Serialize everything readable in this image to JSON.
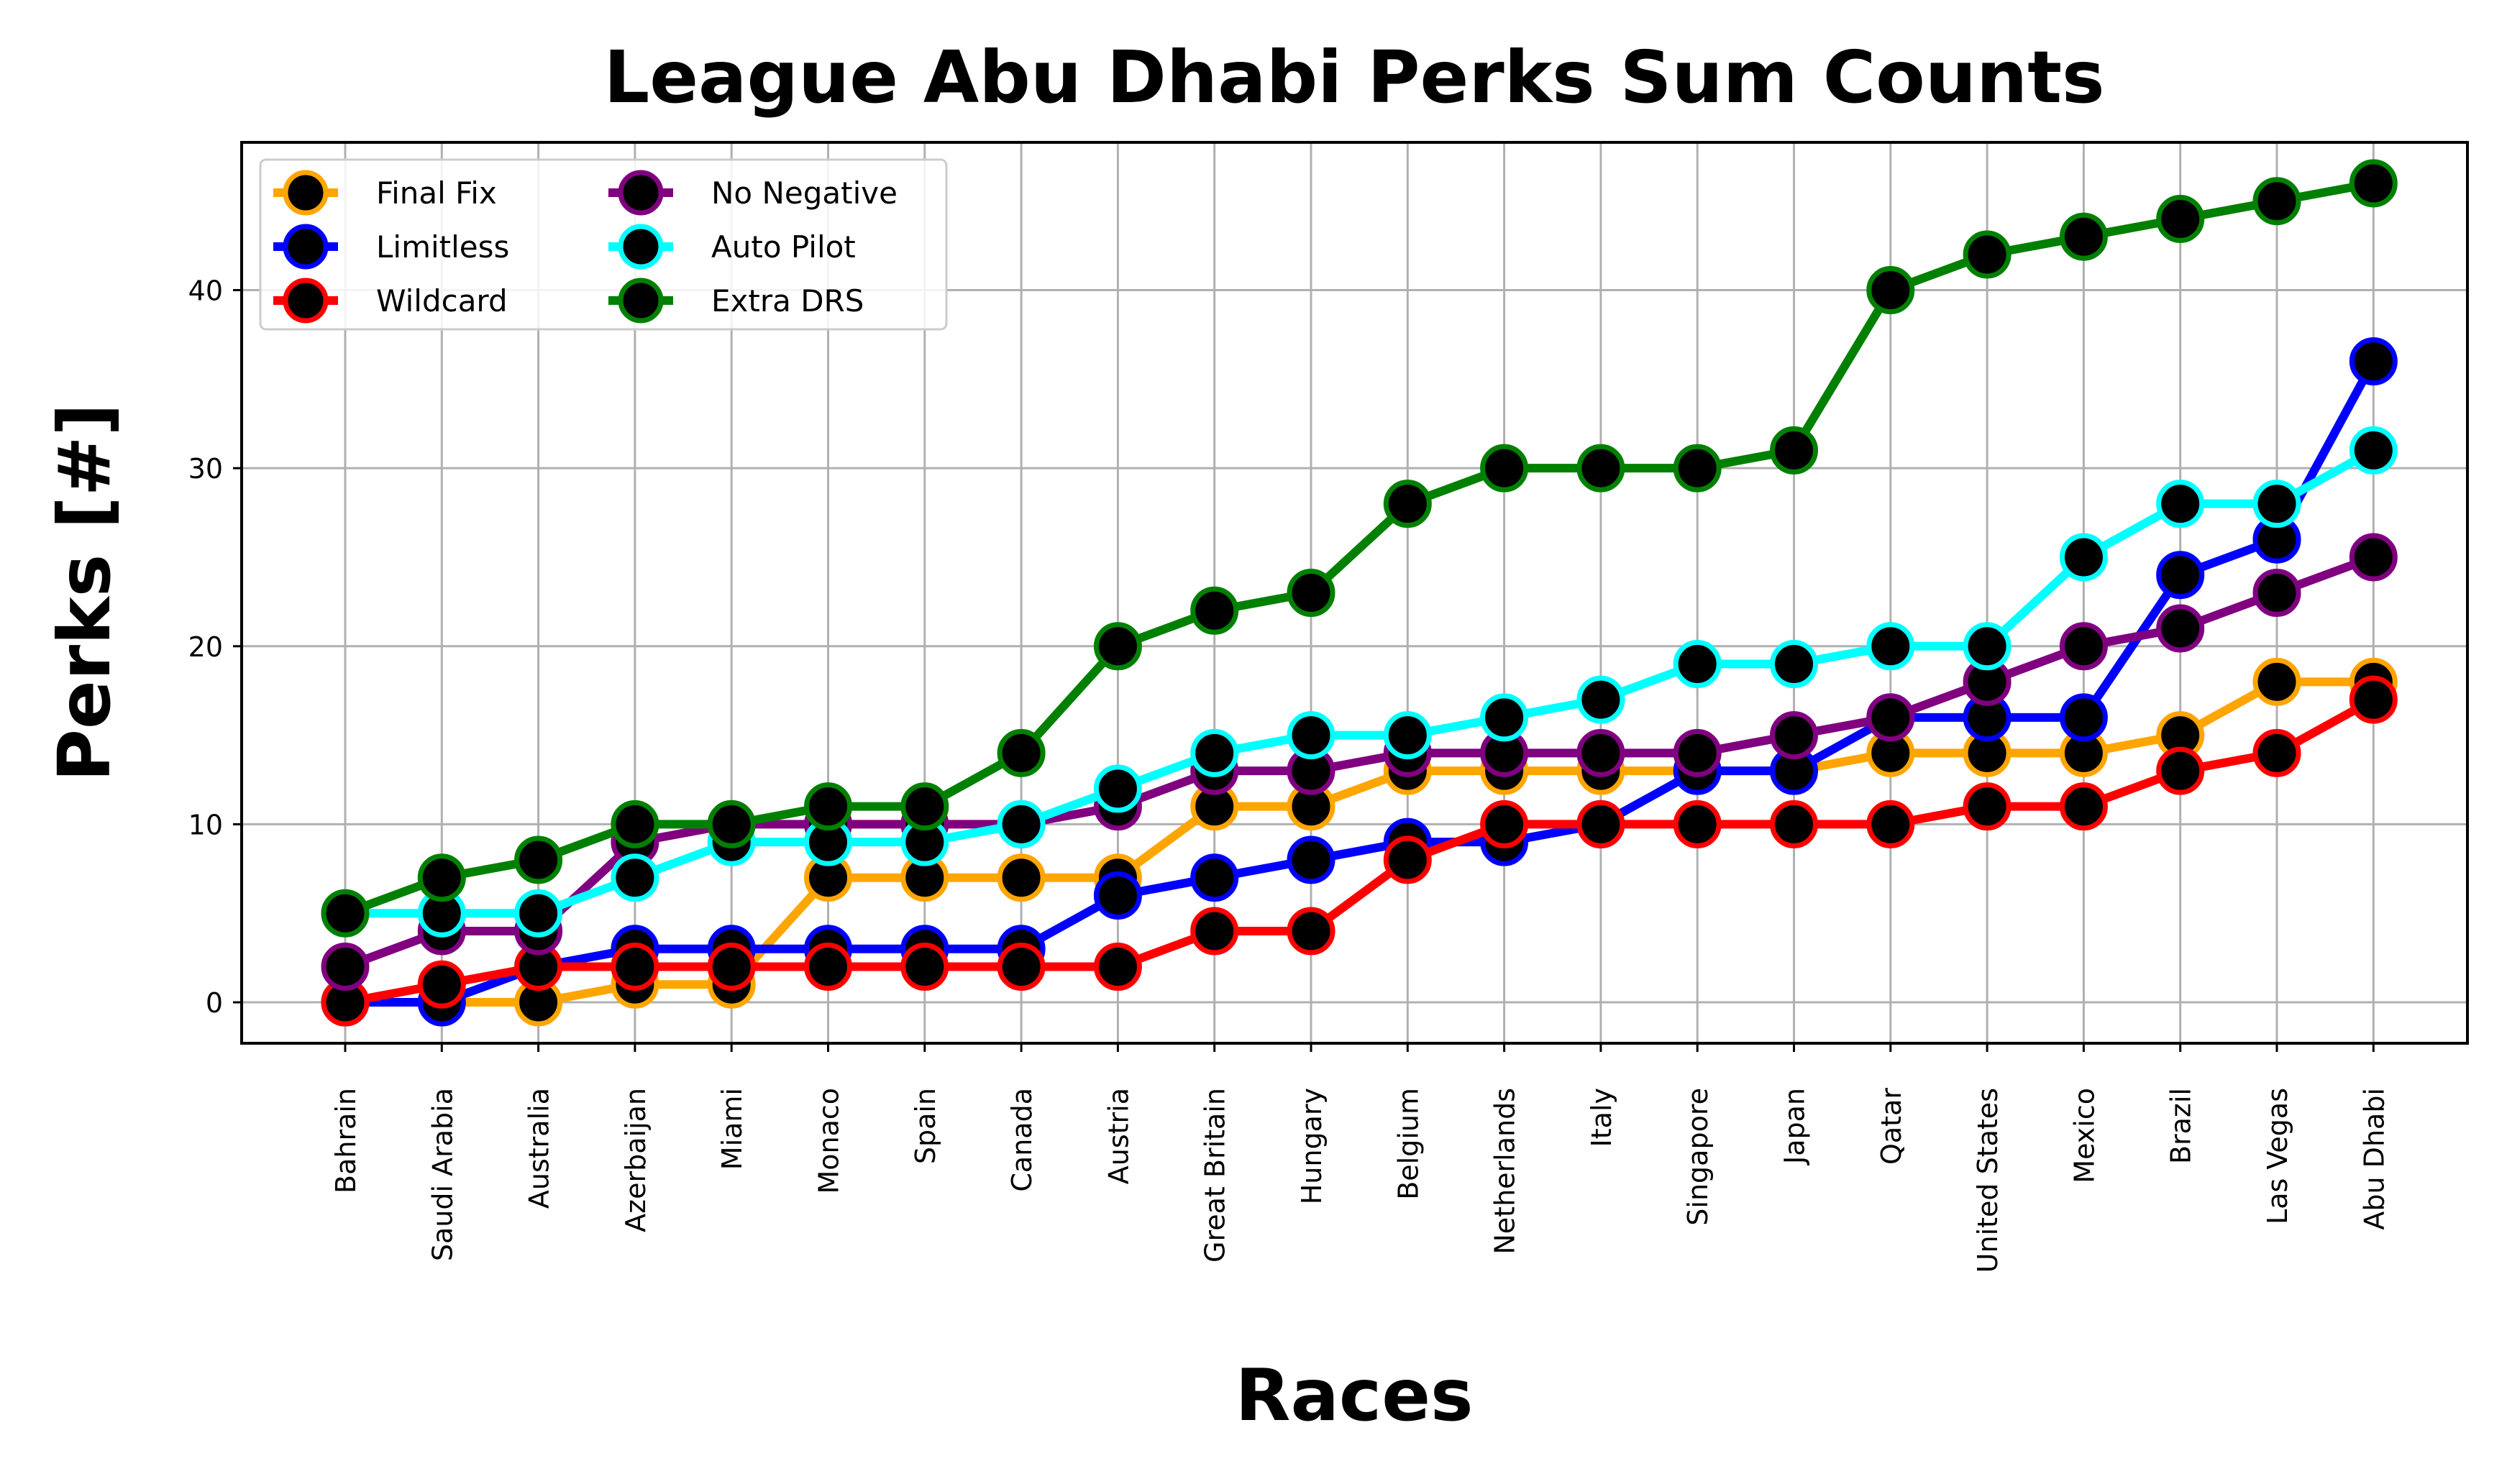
{
  "chart_data": {
    "type": "line",
    "title": "League Abu Dhabi Perks Sum Counts",
    "xlabel": "Races",
    "ylabel": "Perks [#]",
    "categories": [
      "Bahrain",
      "Saudi Arabia",
      "Australia",
      "Azerbaijan",
      "Miami",
      "Monaco",
      "Spain",
      "Canada",
      "Austria",
      "Great Britain",
      "Hungary",
      "Belgium",
      "Netherlands",
      "Italy",
      "Singapore",
      "Japan",
      "Qatar",
      "United States",
      "Mexico",
      "Brazil",
      "Las Vegas",
      "Abu Dhabi"
    ],
    "ylim": [
      -2.3,
      48.3
    ],
    "yticks": [
      0,
      10,
      20,
      30,
      40
    ],
    "grid": true,
    "legend_position": "top-left",
    "marker_fill": "#000000",
    "series": [
      {
        "name": "Final Fix",
        "color": "#ffa500",
        "values": [
          0,
          0,
          0,
          1,
          1,
          7,
          7,
          7,
          7,
          11,
          11,
          13,
          13,
          13,
          13,
          13,
          14,
          14,
          14,
          15,
          18,
          18
        ]
      },
      {
        "name": "Limitless",
        "color": "#0000ff",
        "values": [
          0,
          0,
          2,
          3,
          3,
          3,
          3,
          3,
          6,
          7,
          8,
          9,
          9,
          10,
          13,
          13,
          16,
          16,
          16,
          24,
          26,
          36
        ]
      },
      {
        "name": "Wildcard",
        "color": "#ff0000",
        "values": [
          0,
          1,
          2,
          2,
          2,
          2,
          2,
          2,
          2,
          4,
          4,
          8,
          10,
          10,
          10,
          10,
          10,
          11,
          11,
          13,
          14,
          17
        ]
      },
      {
        "name": "No Negative",
        "color": "#800080",
        "values": [
          2,
          4,
          4,
          9,
          10,
          10,
          10,
          10,
          11,
          13,
          13,
          14,
          14,
          14,
          14,
          15,
          16,
          18,
          20,
          21,
          23,
          25
        ]
      },
      {
        "name": "Auto Pilot",
        "color": "#00ffff",
        "values": [
          5,
          5,
          5,
          7,
          9,
          9,
          9,
          10,
          12,
          14,
          15,
          15,
          16,
          17,
          19,
          19,
          20,
          20,
          25,
          28,
          28,
          31
        ]
      },
      {
        "name": "Extra DRS",
        "color": "#008000",
        "values": [
          5,
          7,
          8,
          10,
          10,
          11,
          11,
          14,
          20,
          22,
          23,
          28,
          30,
          30,
          30,
          31,
          40,
          42,
          43,
          44,
          45,
          46
        ]
      }
    ]
  }
}
